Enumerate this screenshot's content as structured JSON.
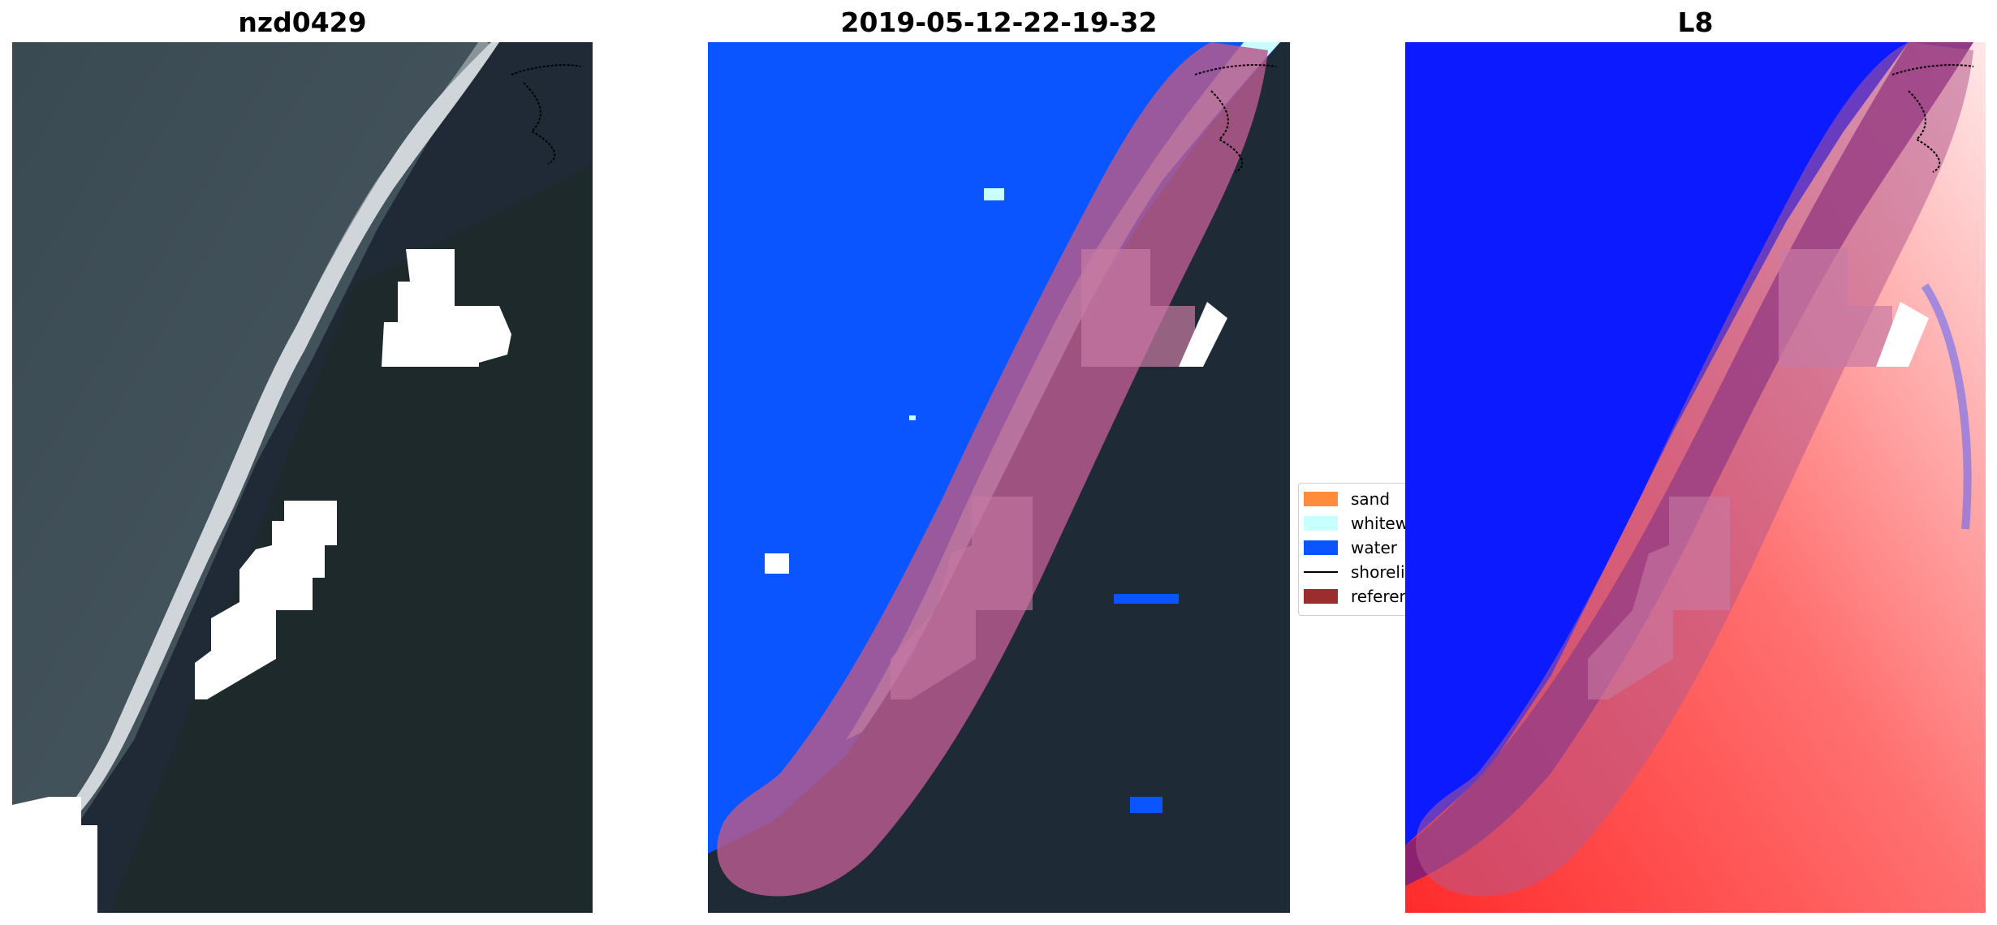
{
  "panels": [
    {
      "title": "nzd0429"
    },
    {
      "title": "2019-05-12-22-19-32"
    },
    {
      "title": "L8"
    }
  ],
  "legend": {
    "items": [
      {
        "label": "sand",
        "color": "#ff8c3a",
        "kind": "patch"
      },
      {
        "label": "whitewater",
        "color": "#c8ffff",
        "kind": "patch"
      },
      {
        "label": "water",
        "color": "#0a55ff",
        "kind": "patch"
      },
      {
        "label": "shoreline",
        "color": "#000000",
        "kind": "line"
      },
      {
        "label": "reference shoreline buffer",
        "color": "#9b2d2d",
        "kind": "patch"
      }
    ]
  },
  "colors": {
    "ocean": "#3f4d55",
    "land": "#1f2a37",
    "forest": "#1e2b23",
    "surf": "#e8ecef",
    "water_class": "#0a55ff",
    "whitewater_class": "#c8ffff",
    "buffer": "#b4598c",
    "mndwi_water": "#0019ff",
    "mndwi_land": "#ff4040"
  }
}
